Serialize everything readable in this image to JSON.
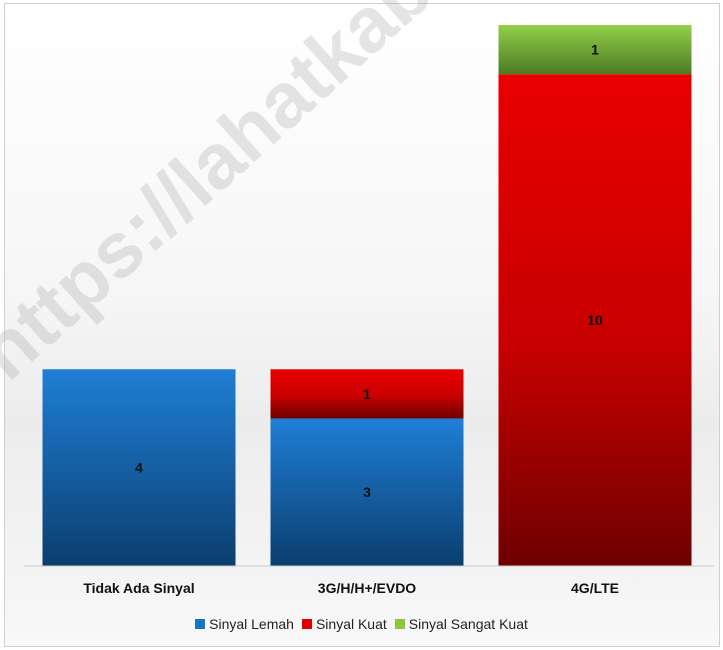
{
  "chart_data": {
    "type": "bar",
    "stacked": true,
    "categories": [
      "Tidak Ada Sinyal",
      "3G/H/H+/EVDO",
      "4G/LTE"
    ],
    "series": [
      {
        "name": "Sinyal Lemah",
        "values": [
          4,
          3,
          0
        ],
        "color": "#1a74c6"
      },
      {
        "name": "Sinyal Kuat",
        "values": [
          0,
          1,
          10
        ],
        "color": "#e00000"
      },
      {
        "name": "Sinyal Sangat Kuat",
        "values": [
          0,
          0,
          1
        ],
        "color": "#8cc63f"
      }
    ],
    "ylim": [
      0,
      11
    ],
    "grid": false,
    "legend_position": "bottom"
  },
  "watermark": "https://lahatkab.bps.go.id"
}
